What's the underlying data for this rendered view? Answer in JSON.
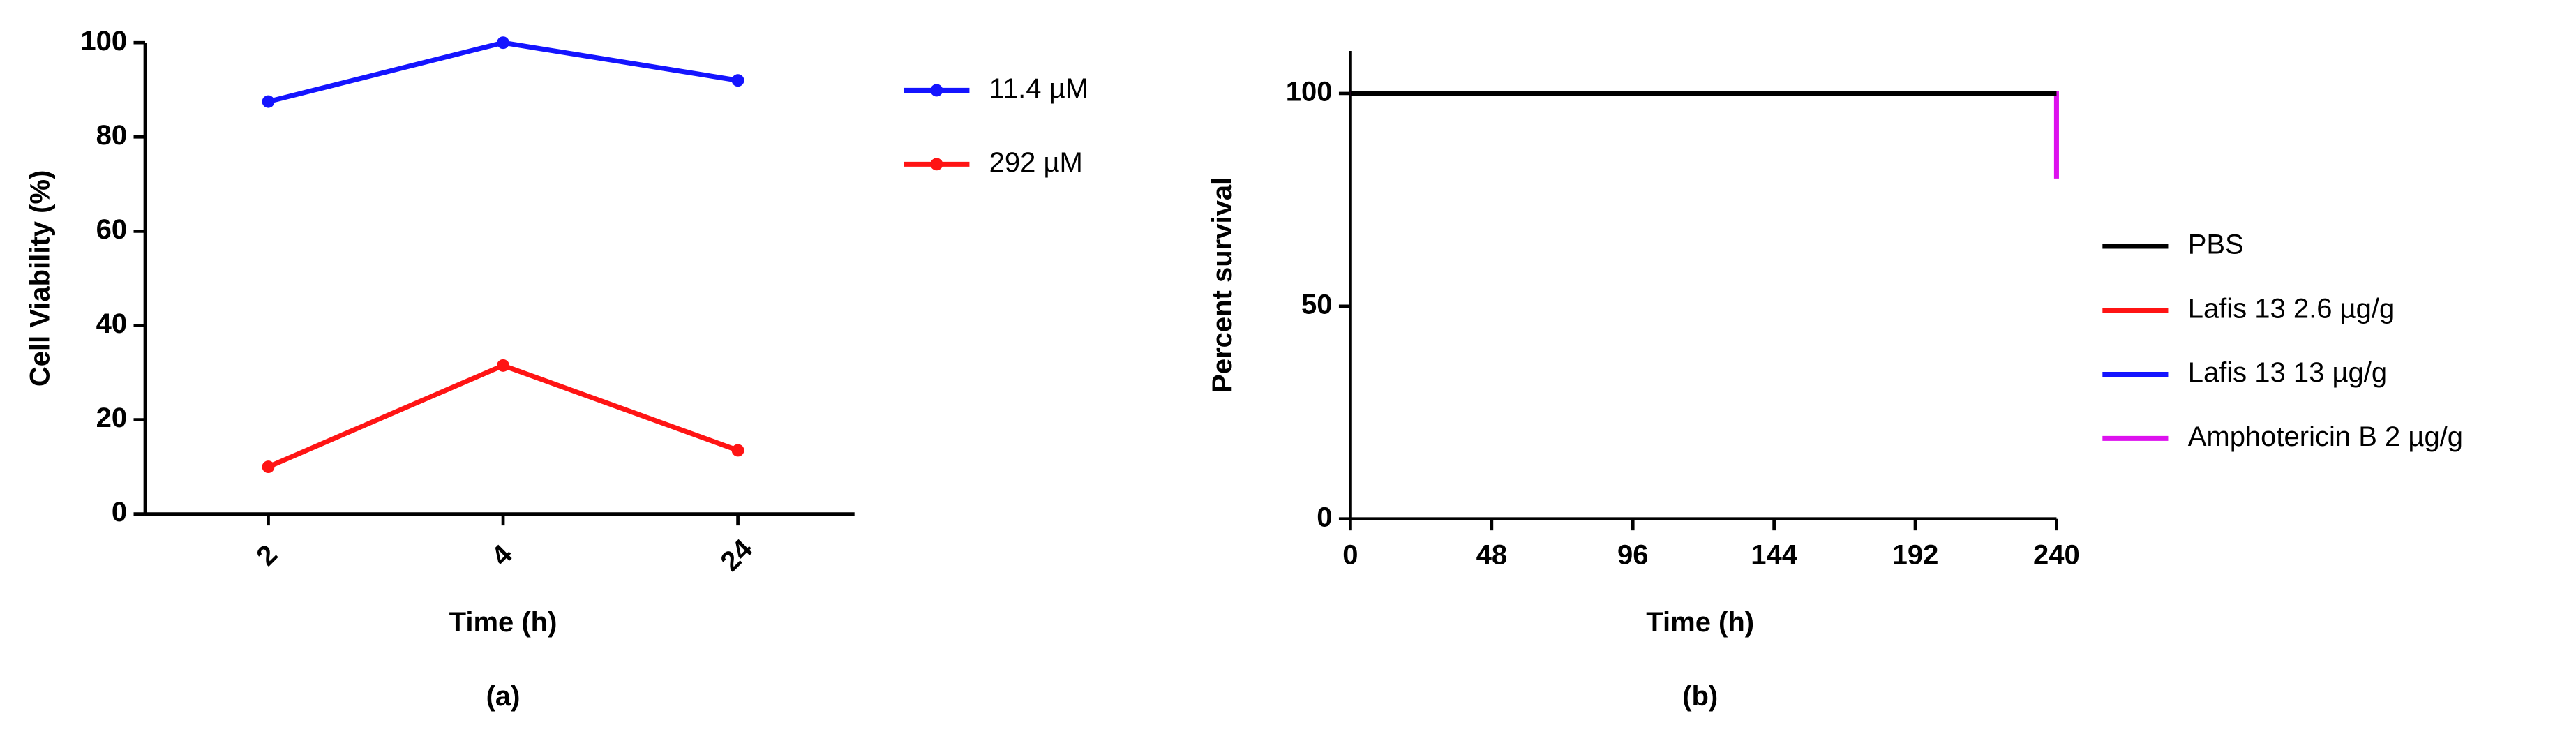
{
  "chart_data": [
    {
      "type": "line",
      "y_label": "Cell Viability (%)",
      "x_label": "Time (h)",
      "panel_label": "(a)",
      "categories": [
        "2",
        "4",
        "24"
      ],
      "series": [
        {
          "name": "11.4 µM",
          "color": "#1414ff",
          "values": [
            87.5,
            100,
            92
          ]
        },
        {
          "name": "292 µM",
          "color": "#ff1414",
          "values": [
            10,
            31.5,
            13.5
          ]
        }
      ],
      "ylim": [
        0,
        100
      ],
      "yticks": [
        0,
        20,
        40,
        60,
        80,
        100
      ]
    },
    {
      "type": "survival",
      "y_label": "Percent survival",
      "x_label": "Time (h)",
      "panel_label": "(b)",
      "x": [
        0,
        240,
        240
      ],
      "series": [
        {
          "name": "PBS",
          "color": "#000000",
          "values": [
            100,
            100,
            100
          ]
        },
        {
          "name": "Lafis 13 2.6 µg/g",
          "color": "#ff1414",
          "values": [
            100,
            100,
            100
          ]
        },
        {
          "name": "Lafis 13 13 µg/g",
          "color": "#1414ff",
          "values": [
            100,
            100,
            100
          ]
        },
        {
          "name": "Amphotericin B 2 µg/g",
          "color": "#dd11ee",
          "values": [
            100,
            100,
            80
          ]
        }
      ],
      "xlim": [
        0,
        240
      ],
      "xticks": [
        0,
        48,
        96,
        144,
        192,
        240
      ],
      "ylim": [
        0,
        110
      ],
      "yticks": [
        0,
        50,
        100
      ]
    }
  ]
}
